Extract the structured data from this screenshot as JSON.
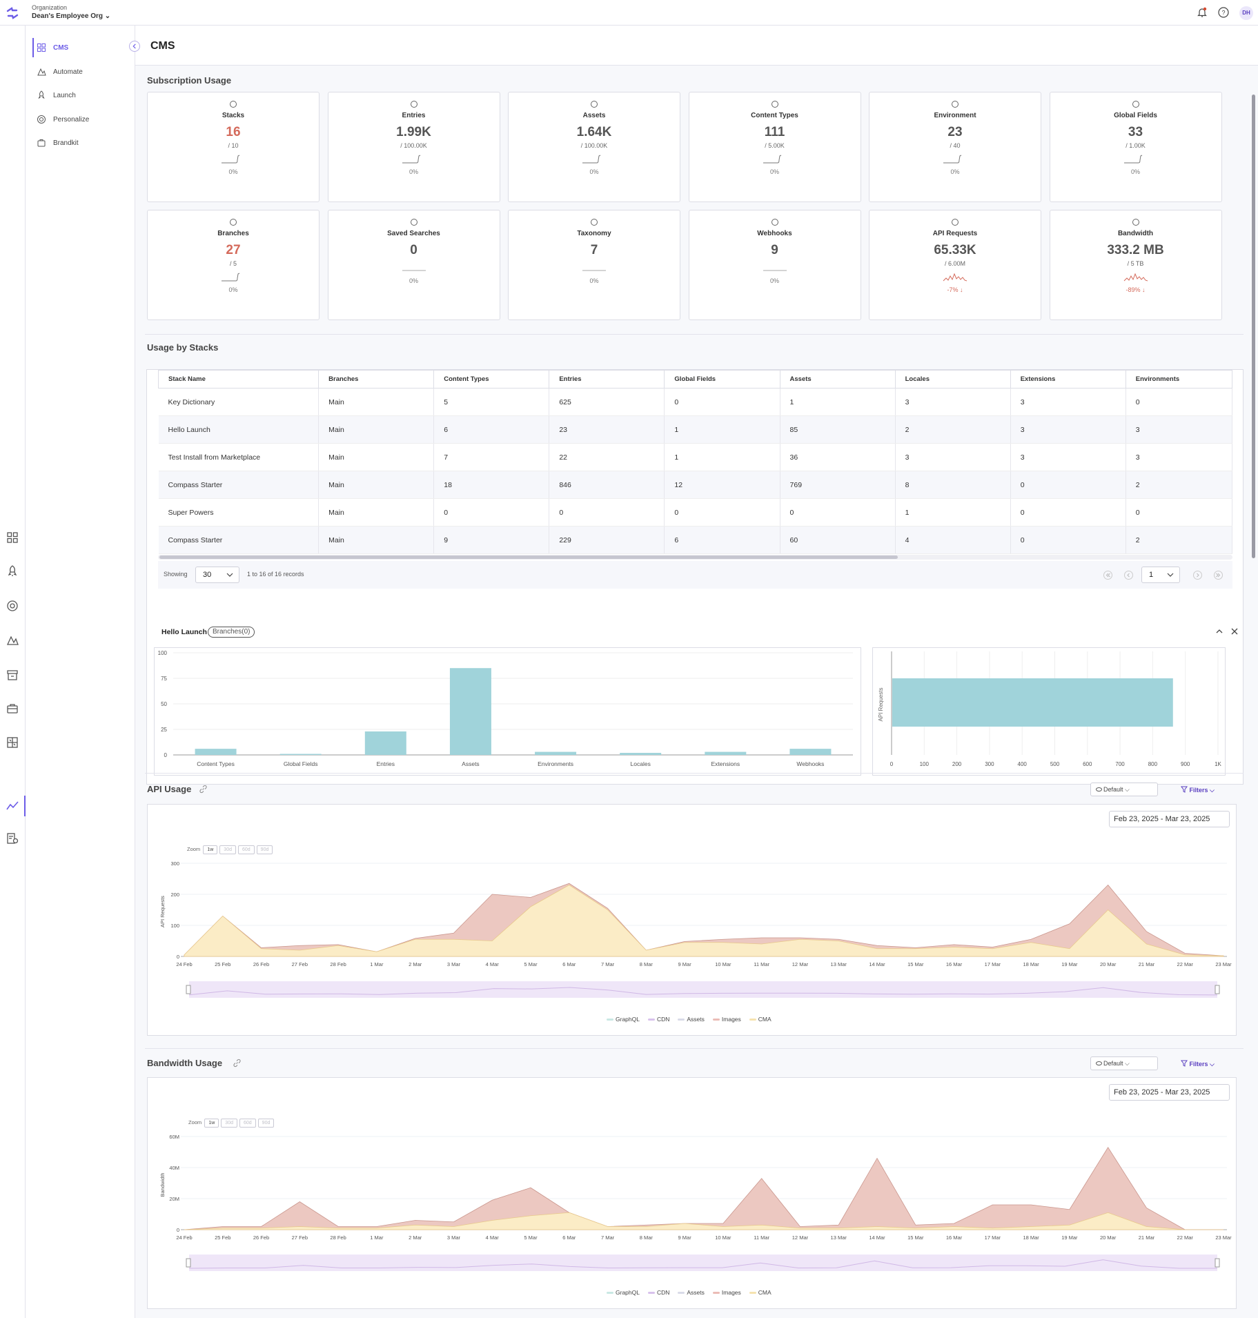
{
  "topbar": {
    "org_label": "Organization",
    "org_name": "Dean's Employee Org ⌄",
    "avatar": "DH"
  },
  "sidebar": {
    "items": [
      {
        "label": "CMS",
        "icon": "grid-icon"
      },
      {
        "label": "Automate",
        "icon": "automate-icon"
      },
      {
        "label": "Launch",
        "icon": "rocket-icon"
      },
      {
        "label": "Personalize",
        "icon": "target-icon"
      },
      {
        "label": "Brandkit",
        "icon": "brandkit-icon"
      }
    ]
  },
  "page": {
    "title": "CMS"
  },
  "subscription": {
    "title": "Subscription Usage",
    "cards": [
      {
        "label": "Stacks",
        "value": "16",
        "limit": "/ 10",
        "pct": "0%",
        "over": true
      },
      {
        "label": "Entries",
        "value": "1.99K",
        "limit": "/ 100.00K",
        "pct": "0%"
      },
      {
        "label": "Assets",
        "value": "1.64K",
        "limit": "/ 100.00K",
        "pct": "0%"
      },
      {
        "label": "Content Types",
        "value": "111",
        "limit": "/ 5.00K",
        "pct": "0%"
      },
      {
        "label": "Environment",
        "value": "23",
        "limit": "/ 40",
        "pct": "0%"
      },
      {
        "label": "Global Fields",
        "value": "33",
        "limit": "/ 1.00K",
        "pct": "0%"
      },
      {
        "label": "Branches",
        "value": "27",
        "limit": "/ 5",
        "pct": "0%",
        "over": true
      },
      {
        "label": "Saved Searches",
        "value": "0",
        "limit": "",
        "pct": "0%"
      },
      {
        "label": "Taxonomy",
        "value": "7",
        "limit": "",
        "pct": "0%"
      },
      {
        "label": "Webhooks",
        "value": "9",
        "limit": "",
        "pct": "0%"
      },
      {
        "label": "API Requests",
        "value": "65.33K",
        "limit": "/ 6.00M",
        "pct": "-7% ↓",
        "down": true
      },
      {
        "label": "Bandwidth",
        "value": "333.2 MB",
        "limit": "/ 5 TB",
        "pct": "-89% ↓",
        "down": true
      }
    ]
  },
  "stacks": {
    "title": "Usage by Stacks",
    "columns": [
      "Stack Name",
      "Branches",
      "Content Types",
      "Entries",
      "Global Fields",
      "Assets",
      "Locales",
      "Extensions",
      "Environments"
    ],
    "rows": [
      [
        "Key Dictionary",
        "Main",
        "5",
        "625",
        "0",
        "1",
        "3",
        "3",
        "0"
      ],
      [
        "Hello Launch",
        "Main",
        "6",
        "23",
        "1",
        "85",
        "2",
        "3",
        "3"
      ],
      [
        "Test Install from Marketplace",
        "Main",
        "7",
        "22",
        "1",
        "36",
        "3",
        "3",
        "3"
      ],
      [
        "Compass Starter",
        "Main",
        "18",
        "846",
        "12",
        "769",
        "8",
        "0",
        "2"
      ],
      [
        "Super Powers",
        "Main",
        "0",
        "0",
        "0",
        "0",
        "1",
        "0",
        "0"
      ],
      [
        "Compass Starter",
        "Main",
        "9",
        "229",
        "6",
        "60",
        "4",
        "0",
        "2"
      ]
    ],
    "showing_label": "Showing",
    "page_size": "30",
    "records": "1 to 16 of 16 records",
    "page": "1"
  },
  "detail": {
    "stack": "Hello Launch",
    "badge": "Branches(0)"
  },
  "chart_data": [
    {
      "type": "bar",
      "title": "Hello Launch",
      "categories": [
        "Content Types",
        "Global Fields",
        "Entries",
        "Assets",
        "Environments",
        "Locales",
        "Extensions",
        "Webhooks"
      ],
      "values": [
        6,
        1,
        23,
        85,
        3,
        2,
        3,
        6
      ],
      "ylim": [
        0,
        100
      ],
      "yticks": [
        "0",
        "25",
        "50",
        "75",
        "100"
      ]
    },
    {
      "type": "bar",
      "orientation": "horizontal",
      "ylabel": "API Requests",
      "values": [
        860
      ],
      "xlim": [
        0,
        1000
      ],
      "xticks": [
        "0",
        "100",
        "200",
        "300",
        "400",
        "500",
        "600",
        "700",
        "800",
        "900",
        "1K"
      ]
    },
    {
      "type": "area",
      "title": "API Usage",
      "ylabel": "API Requests",
      "ylim": [
        0,
        300
      ],
      "yticks": [
        "0",
        "100",
        "200",
        "300"
      ],
      "x": [
        "24 Feb",
        "25 Feb",
        "26 Feb",
        "27 Feb",
        "28 Feb",
        "1 Mar",
        "2 Mar",
        "3 Mar",
        "4 Mar",
        "5 Mar",
        "6 Mar",
        "7 Mar",
        "8 Mar",
        "9 Mar",
        "10 Mar",
        "11 Mar",
        "12 Mar",
        "13 Mar",
        "14 Mar",
        "15 Mar",
        "16 Mar",
        "17 Mar",
        "18 Mar",
        "19 Mar",
        "20 Mar",
        "21 Mar",
        "22 Mar",
        "23 Mar"
      ],
      "series": [
        {
          "name": "CMA",
          "values": [
            5,
            130,
            25,
            20,
            35,
            15,
            55,
            55,
            50,
            160,
            230,
            150,
            20,
            45,
            45,
            40,
            55,
            50,
            25,
            25,
            30,
            25,
            45,
            25,
            150,
            40,
            5,
            2
          ]
        },
        {
          "name": "Images",
          "values": [
            5,
            130,
            28,
            35,
            38,
            15,
            58,
            75,
            200,
            190,
            235,
            155,
            20,
            48,
            55,
            60,
            60,
            55,
            35,
            28,
            38,
            30,
            55,
            105,
            230,
            80,
            10,
            2
          ]
        }
      ]
    },
    {
      "type": "area",
      "title": "Bandwidth Usage",
      "ylabel": "Bandwidth",
      "ylim": [
        0,
        60
      ],
      "yticks": [
        "0",
        "20M",
        "40M",
        "60M"
      ],
      "x": [
        "24 Feb",
        "25 Feb",
        "26 Feb",
        "27 Feb",
        "28 Feb",
        "1 Mar",
        "2 Mar",
        "3 Mar",
        "4 Mar",
        "5 Mar",
        "6 Mar",
        "7 Mar",
        "8 Mar",
        "9 Mar",
        "10 Mar",
        "11 Mar",
        "12 Mar",
        "13 Mar",
        "14 Mar",
        "15 Mar",
        "16 Mar",
        "17 Mar",
        "18 Mar",
        "19 Mar",
        "20 Mar",
        "21 Mar",
        "22 Mar",
        "23 Mar"
      ],
      "series": [
        {
          "name": "CMA",
          "values": [
            0,
            1,
            1,
            2,
            1,
            1,
            3,
            2,
            6,
            9,
            11,
            2,
            2,
            4,
            2,
            3,
            1,
            1,
            2,
            1,
            2,
            1,
            2,
            3,
            11,
            2,
            0,
            0
          ]
        },
        {
          "name": "Images",
          "values": [
            0,
            2,
            2,
            18,
            2,
            2,
            6,
            5,
            19,
            27,
            11,
            2,
            3,
            4,
            4,
            33,
            2,
            3,
            46,
            3,
            4,
            16,
            16,
            13,
            53,
            14,
            0,
            0
          ]
        }
      ]
    }
  ],
  "api_usage": {
    "title": "API Usage",
    "view": "Default",
    "filters": "Filters",
    "date_range": "Feb 23, 2025 - Mar 23, 2025",
    "zoom_label": "Zoom",
    "zoom": [
      "1w",
      "30d",
      "60d",
      "90d"
    ],
    "legend": [
      {
        "name": "GraphQL",
        "color": "#c9e8e4"
      },
      {
        "name": "CDN",
        "color": "#d8c2ec"
      },
      {
        "name": "Assets",
        "color": "#d9dbe8"
      },
      {
        "name": "Images",
        "color": "#ebbcb6"
      },
      {
        "name": "CMA",
        "color": "#f6e3b0"
      }
    ]
  },
  "bandwidth_usage": {
    "title": "Bandwidth Usage",
    "view": "Default",
    "filters": "Filters",
    "date_range": "Feb 23, 2025 - Mar 23, 2025",
    "zoom_label": "Zoom",
    "zoom": [
      "1w",
      "30d",
      "60d",
      "90d"
    ],
    "legend": [
      {
        "name": "GraphQL",
        "color": "#c9e8e4"
      },
      {
        "name": "CDN",
        "color": "#d8c2ec"
      },
      {
        "name": "Assets",
        "color": "#d9dbe8"
      },
      {
        "name": "Images",
        "color": "#ebbcb6"
      },
      {
        "name": "CMA",
        "color": "#f6e3b0"
      }
    ]
  },
  "colors": {
    "accent": "#6c5ce7",
    "bar": "#a0d3da",
    "over": "#d46a5b",
    "images_area": "#ecc8c1",
    "cma_area": "#fbecc6"
  }
}
